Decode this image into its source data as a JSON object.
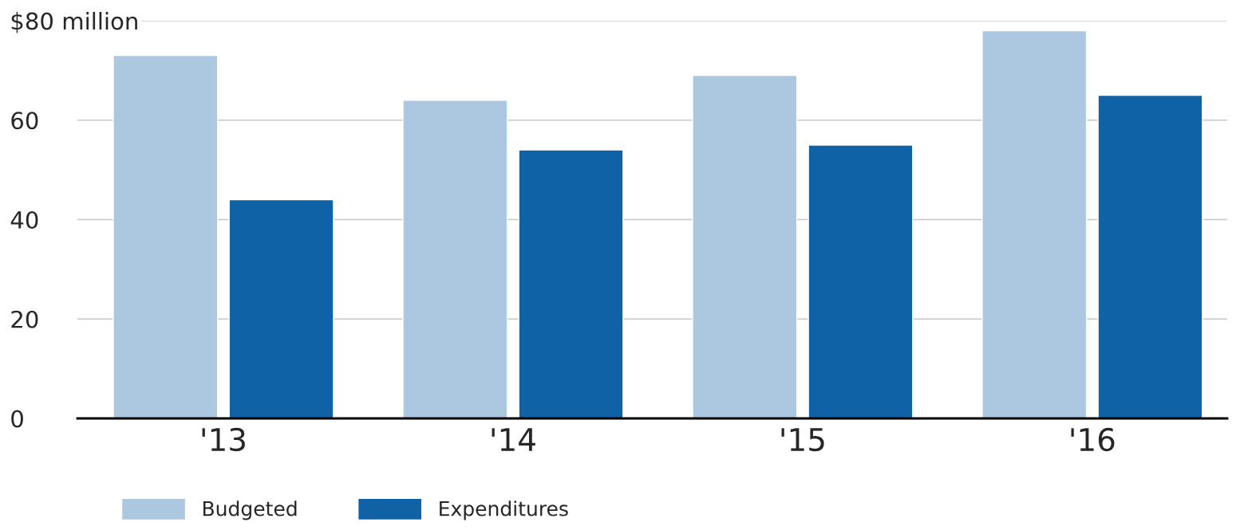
{
  "chart_data": {
    "type": "bar",
    "categories": [
      "'13",
      "'14",
      "'15",
      "'16"
    ],
    "series": [
      {
        "name": "Budgeted",
        "color": "#abc8e0",
        "values": [
          73,
          64,
          69,
          78
        ]
      },
      {
        "name": "Expenditures",
        "color": "#0e62a5",
        "values": [
          44,
          54,
          55,
          65
        ]
      }
    ],
    "ylim": [
      0,
      80
    ],
    "yticks": [
      0,
      20,
      40,
      60,
      {
        "value": 80,
        "label": "$80 million"
      }
    ],
    "grid": "y",
    "legend": "bottom left"
  }
}
